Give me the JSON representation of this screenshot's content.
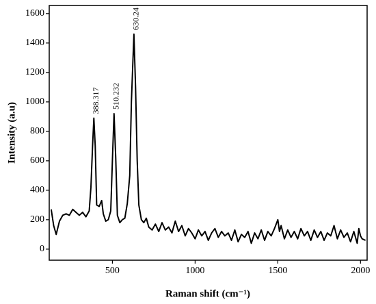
{
  "chart_data": {
    "type": "line",
    "x_label": "Raman shift (cm⁻¹)",
    "y_label": "Intensity (a.u)",
    "annotations": [
      "388.317",
      "510.232",
      "630.24"
    ],
    "xlim": [
      118,
      2040
    ],
    "xticks": [
      500,
      1000,
      1500,
      2000
    ],
    "ylim": [
      -75,
      1655
    ],
    "yticks": [
      0,
      200,
      400,
      600,
      800,
      1000,
      1200,
      1400,
      1600
    ],
    "series": [
      {
        "color": "#000000",
        "x": [
          130,
          145,
          160,
          180,
          200,
          220,
          240,
          260,
          280,
          300,
          320,
          340,
          360,
          370,
          380,
          388,
          396,
          405,
          420,
          435,
          445,
          460,
          475,
          490,
          500,
          510,
          520,
          530,
          545,
          560,
          575,
          590,
          605,
          615,
          630,
          640,
          650,
          660,
          675,
          690,
          705,
          720,
          740,
          760,
          780,
          800,
          820,
          840,
          860,
          880,
          900,
          920,
          940,
          960,
          980,
          1000,
          1020,
          1040,
          1060,
          1080,
          1100,
          1120,
          1140,
          1160,
          1180,
          1200,
          1220,
          1240,
          1260,
          1280,
          1300,
          1320,
          1340,
          1360,
          1380,
          1400,
          1420,
          1440,
          1460,
          1480,
          1500,
          1510,
          1520,
          1540,
          1560,
          1580,
          1600,
          1620,
          1640,
          1660,
          1680,
          1700,
          1720,
          1740,
          1760,
          1780,
          1800,
          1820,
          1840,
          1860,
          1880,
          1900,
          1920,
          1940,
          1960,
          1980,
          1990,
          2000,
          2010,
          2030
        ],
        "values": [
          270,
          160,
          100,
          190,
          230,
          240,
          230,
          270,
          250,
          230,
          250,
          220,
          260,
          420,
          700,
          890,
          700,
          300,
          290,
          330,
          240,
          190,
          200,
          260,
          600,
          920,
          620,
          230,
          180,
          200,
          210,
          310,
          500,
          1000,
          1460,
          1100,
          600,
          300,
          200,
          180,
          210,
          150,
          130,
          170,
          120,
          180,
          130,
          150,
          110,
          190,
          120,
          160,
          90,
          140,
          110,
          70,
          130,
          90,
          120,
          60,
          110,
          140,
          80,
          120,
          90,
          110,
          60,
          130,
          50,
          100,
          80,
          120,
          40,
          110,
          70,
          130,
          60,
          120,
          90,
          140,
          200,
          120,
          160,
          70,
          130,
          80,
          120,
          70,
          140,
          90,
          120,
          60,
          130,
          80,
          120,
          60,
          110,
          90,
          160,
          70,
          130,
          80,
          110,
          50,
          120,
          40,
          140,
          90,
          70,
          60
        ]
      }
    ]
  }
}
